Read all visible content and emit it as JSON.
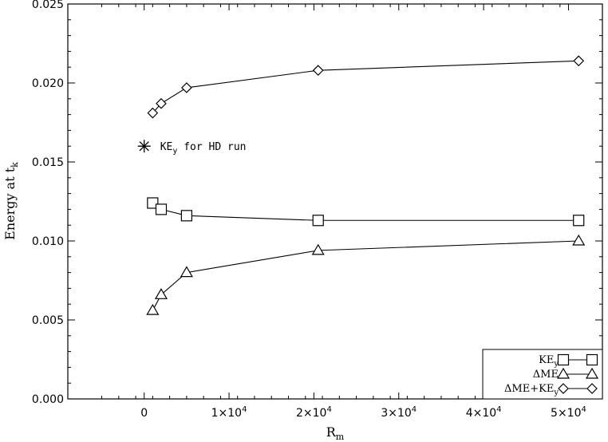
{
  "chart_data": {
    "type": "line",
    "xlabel": "R",
    "xlabel_sub": "m",
    "ylabel": "Energy at t",
    "ylabel_sub": "k",
    "xlim": [
      -9000,
      54000
    ],
    "ylim": [
      0.0,
      0.025
    ],
    "xticks": [
      0,
      10000,
      20000,
      30000,
      40000,
      50000
    ],
    "xtick_labels": [
      {
        "text": "0",
        "exp": ""
      },
      {
        "text": "1×10",
        "exp": "4"
      },
      {
        "text": "2×10",
        "exp": "4"
      },
      {
        "text": "3×10",
        "exp": "4"
      },
      {
        "text": "4×10",
        "exp": "4"
      },
      {
        "text": "5×10",
        "exp": "4"
      }
    ],
    "yticks": [
      0.0,
      0.005,
      0.01,
      0.015,
      0.02,
      0.025
    ],
    "ytick_labels": [
      "0.000",
      "0.005",
      "0.010",
      "0.015",
      "0.020",
      "0.025"
    ],
    "x": [
      1000,
      2000,
      5000,
      20500,
      51200
    ],
    "series": [
      {
        "name": "KE",
        "name_sub": "y",
        "marker": "square",
        "values": [
          0.0124,
          0.012,
          0.0116,
          0.0113,
          0.0113
        ]
      },
      {
        "name": "ΔME",
        "name_sub": "",
        "marker": "triangle",
        "values": [
          0.0056,
          0.0066,
          0.008,
          0.0094,
          0.01
        ]
      },
      {
        "name": "ΔME+KE",
        "name_sub": "y",
        "marker": "diamond",
        "values": [
          0.0181,
          0.0187,
          0.0197,
          0.0208,
          0.0214
        ]
      }
    ],
    "annotation": {
      "marker": "asterisk",
      "x": 0,
      "y": 0.016,
      "text": "KE",
      "text_sub": "y",
      "text_rest": " for HD run"
    },
    "legend_position": "bottom-right",
    "grid": false
  }
}
